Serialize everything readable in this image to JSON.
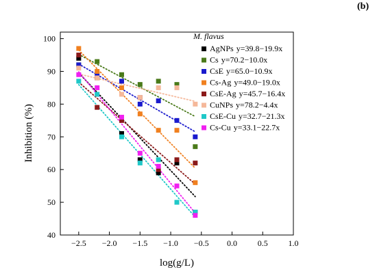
{
  "panel_label": "(b)",
  "chart_data": {
    "type": "scatter",
    "xlabel": "log(g/L)",
    "ylabel": "Inhibition (%)",
    "xlim": [
      -2.8,
      1.0
    ],
    "ylim": [
      40,
      102
    ],
    "xticks": [
      -2.5,
      -2.0,
      -1.5,
      -1.0,
      -0.5,
      0.0,
      0.5,
      1.0
    ],
    "xtick_labels": [
      "−2.5",
      "−2.0",
      "−1.5",
      "−1.0",
      "−0.5",
      "0.0",
      "0.5",
      "1.0"
    ],
    "yticks": [
      40,
      50,
      60,
      70,
      80,
      90,
      100
    ],
    "ytick_labels": [
      "40",
      "50",
      "60",
      "70",
      "80",
      "90",
      "100"
    ],
    "grid": false,
    "legend_title": "M. flavus",
    "legend_position": "top-right",
    "x": [
      -2.5,
      -2.2,
      -1.8,
      -1.5,
      -1.2,
      -0.9,
      -0.6
    ],
    "series": [
      {
        "name": "AgNPs",
        "equation": "y=39.8−19.9x",
        "color": "#000000",
        "values": [
          94,
          88,
          71,
          63,
          59,
          62,
          47
        ],
        "fit": [
          39.8,
          -19.9
        ]
      },
      {
        "name": "Cs",
        "equation": "y=70.2−10.0x",
        "color": "#4a7a1a",
        "values": [
          92,
          93,
          89,
          86,
          87,
          86,
          67
        ],
        "fit": [
          70.2,
          -10.0
        ]
      },
      {
        "name": "CsE",
        "equation": "y=65.0−10.9x",
        "color": "#1a1acd",
        "values": [
          92,
          89,
          87,
          80,
          81,
          75,
          70
        ],
        "fit": [
          65.0,
          -10.9
        ]
      },
      {
        "name": "Cs-Ag",
        "equation": "y=49.0−19.0x",
        "color": "#f08020",
        "values": [
          97,
          90,
          85,
          77,
          72,
          72,
          56
        ],
        "fit": [
          49.0,
          -19.0
        ]
      },
      {
        "name": "CsE-Ag",
        "equation": "y=45.7−16.4x",
        "color": "#8b1a1a",
        "values": [
          95,
          79,
          75,
          82,
          60,
          63,
          62
        ],
        "fit": [
          45.7,
          -16.4
        ]
      },
      {
        "name": "CuNPs",
        "equation": "y=78.2−4.4x",
        "color": "#f5b89a",
        "values": [
          91,
          88,
          83,
          82,
          85,
          85,
          80
        ],
        "fit": [
          78.2,
          -4.4
        ]
      },
      {
        "name": "CsE-Cu",
        "equation": "y=32.7−21.3x",
        "color": "#20c8c8",
        "values": [
          87,
          83,
          70,
          62,
          63,
          50,
          47
        ],
        "fit": [
          32.7,
          -21.3
        ]
      },
      {
        "name": "Cs-Cu",
        "equation": "y=33.1−22.7x",
        "color": "#f020f0",
        "values": [
          89,
          85,
          76,
          65,
          61,
          55,
          46
        ],
        "fit": [
          33.1,
          -22.7
        ]
      }
    ]
  }
}
